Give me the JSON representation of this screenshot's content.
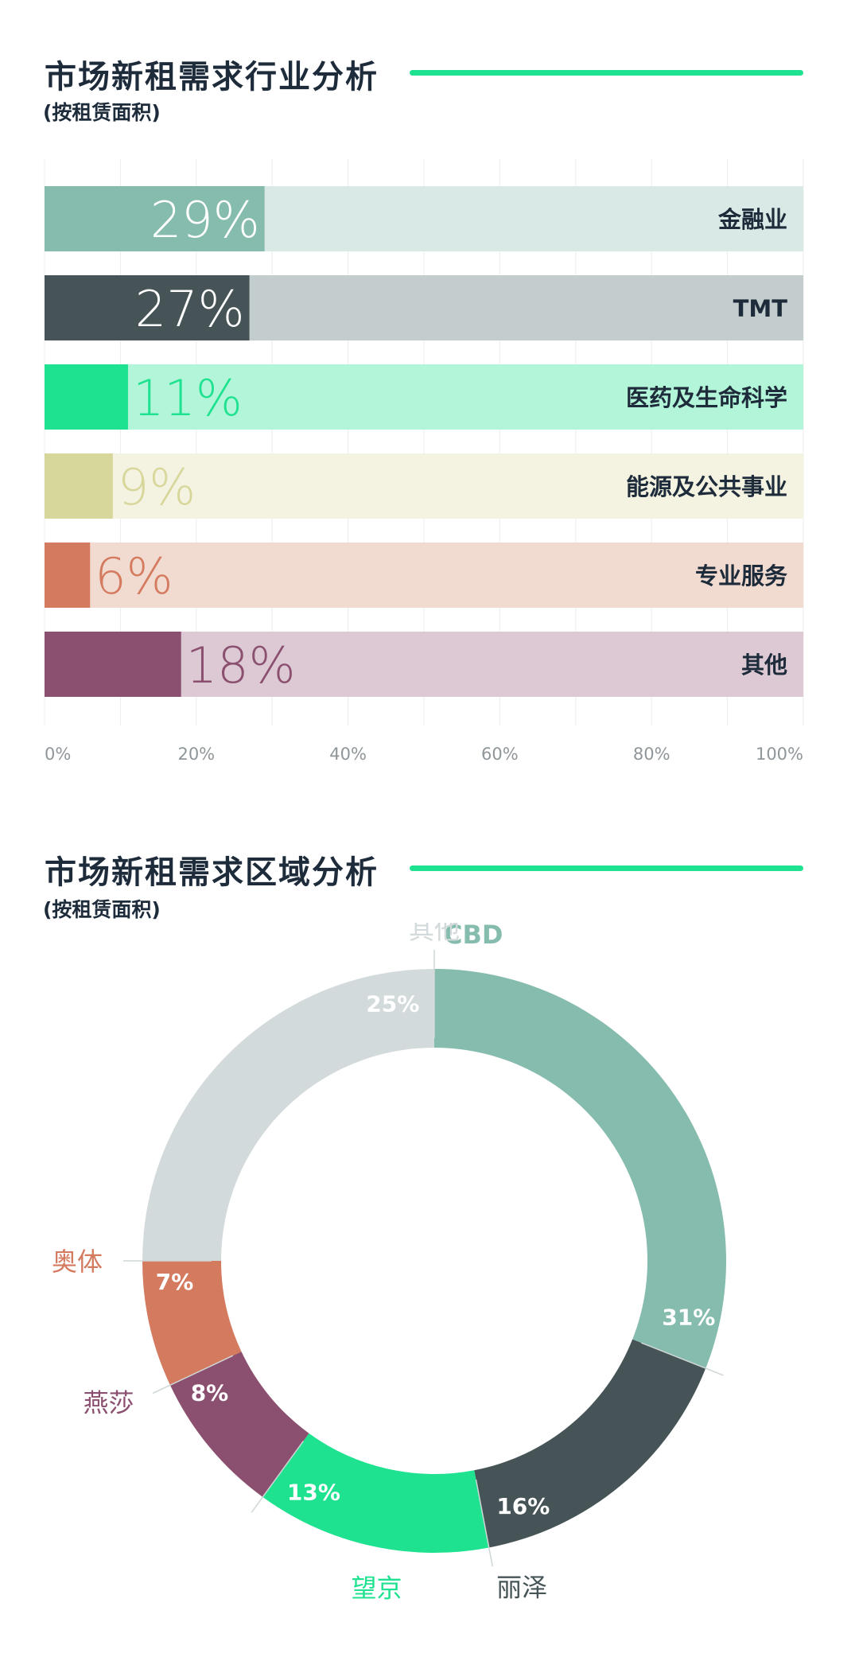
{
  "charts": {
    "industry": {
      "title": "市场新租需求行业分析",
      "subtitle": "(按租赁面积)"
    },
    "region": {
      "title": "市场新租需求区域分析",
      "subtitle": "(按租赁面积)"
    }
  },
  "colors": {
    "accent_rule": "#1ee28f",
    "title_text": "#1d2b3a"
  },
  "chart_data": [
    {
      "type": "bar",
      "orientation": "horizontal",
      "categories": [
        "金融业",
        "TMT",
        "医药及生命科学",
        "能源及公共事业",
        "专业服务",
        "其他"
      ],
      "values": [
        29,
        27,
        11,
        9,
        6,
        18
      ],
      "value_labels": [
        "29%",
        "27%",
        "11%",
        "9%",
        "6%",
        "18%"
      ],
      "xlim": [
        0,
        100
      ],
      "xticks": [
        "0%",
        "20%",
        "40%",
        "60%",
        "80%",
        "100%"
      ],
      "grid": true,
      "colors": [
        {
          "fill": "#86bcae",
          "track": "#d9eae6",
          "label": "#ffffff"
        },
        {
          "fill": "#465457",
          "track": "#c4cdcd",
          "label": "#ffffff"
        },
        {
          "fill": "#1ee28f",
          "track": "#b3f5d8",
          "label": "#1ee28f"
        },
        {
          "fill": "#d8d79b",
          "track": "#f4f3e1",
          "label": "#d8d79b"
        },
        {
          "fill": "#d47a5e",
          "track": "#f1dad0",
          "label": "#d47a5e"
        },
        {
          "fill": "#8b506f",
          "track": "#dcc9d4",
          "label": "#8b506f"
        }
      ]
    },
    {
      "type": "pie",
      "donut": true,
      "slices": [
        {
          "label": "CBD",
          "value": 31,
          "value_label": "31%",
          "color": "#86bcae"
        },
        {
          "label": "丽泽",
          "value": 16,
          "value_label": "16%",
          "color": "#465457"
        },
        {
          "label": "望京",
          "value": 13,
          "value_label": "13%",
          "color": "#1ee28f"
        },
        {
          "label": "燕莎",
          "value": 8,
          "value_label": "8%",
          "color": "#8b506f"
        },
        {
          "label": "奥体",
          "value": 7,
          "value_label": "7%",
          "color": "#d47a5e"
        },
        {
          "label": "其他",
          "value": 25,
          "value_label": "25%",
          "color": "#d3dadb"
        }
      ]
    }
  ]
}
